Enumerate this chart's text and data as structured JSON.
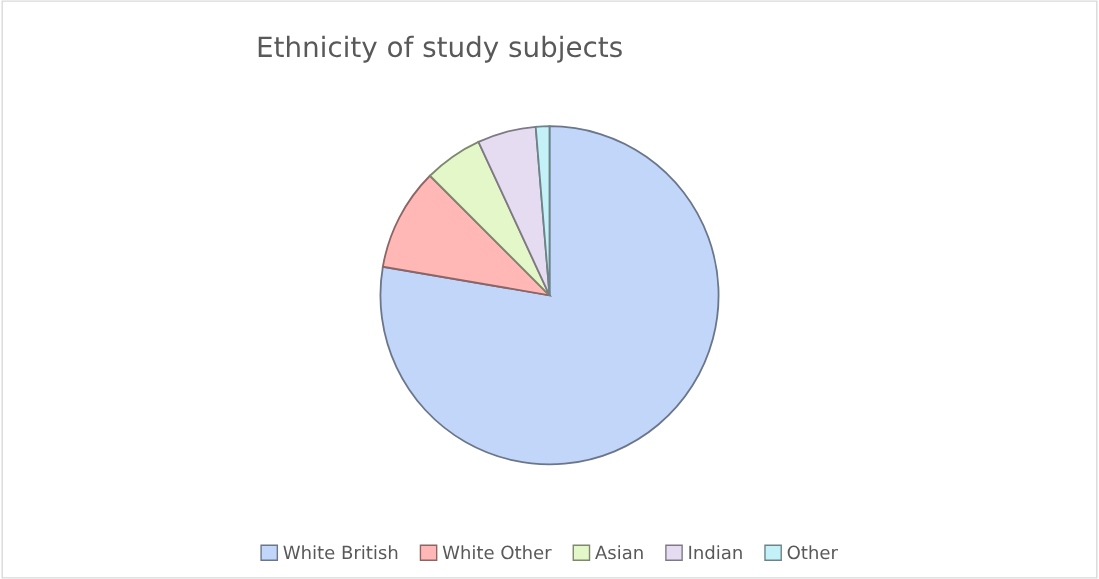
{
  "chart_data": {
    "type": "pie",
    "title": "Ethnicity of study subjects",
    "categories": [
      "White British",
      "White Other",
      "Asian",
      "Indian",
      "Other"
    ],
    "values": [
      77.7,
      9.8,
      5.6,
      5.6,
      1.3
    ],
    "colors": [
      "#c2d6fa",
      "#ffb8b6",
      "#e4f7c8",
      "#e6dcf2",
      "#c4f0f8"
    ],
    "legend": "bottom"
  }
}
